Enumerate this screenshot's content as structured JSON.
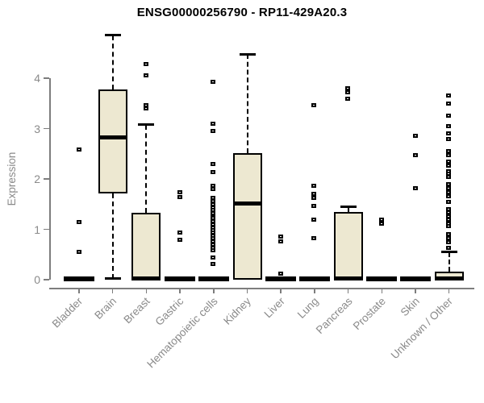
{
  "title": "ENSG00000256790 - RP11-429A20.3",
  "colors": {
    "box_fill": "#ede8d1",
    "box_border": "#000000",
    "axis_color": "#7d7d7d",
    "label_color": "#8a8a8a",
    "title_color": "#000000",
    "background": "#ffffff"
  },
  "chart_data": {
    "type": "boxplot",
    "title": "ENSG00000256790 - RP11-429A20.3",
    "xlabel": "",
    "ylabel": "Expression",
    "ylim": [
      0,
      4.9
    ],
    "yticks": [
      0,
      1,
      2,
      3,
      4
    ],
    "grid": false,
    "legend": false,
    "categories": [
      "Bladder",
      "Brain",
      "Breast",
      "Gastric",
      "Hematopoietic cells",
      "Kidney",
      "Liver",
      "Lung",
      "Pancreas",
      "Prostate",
      "Skin",
      "Unknown / Other"
    ],
    "boxes": [
      {
        "category": "Bladder",
        "whisker_low": null,
        "q1": 0,
        "median": 0.02,
        "q3": 0,
        "whisker_high": null,
        "outliers": [
          2.58,
          1.15,
          0.56
        ]
      },
      {
        "category": "Brain",
        "whisker_low": 0.02,
        "q1": 1.72,
        "median": 2.82,
        "q3": 3.78,
        "whisker_high": 4.85,
        "outliers": []
      },
      {
        "category": "Breast",
        "whisker_low": null,
        "q1": 0,
        "median": 0.02,
        "q3": 1.33,
        "whisker_high": 3.08,
        "outliers": [
          4.28,
          4.06,
          3.46,
          3.4
        ]
      },
      {
        "category": "Gastric",
        "whisker_low": null,
        "q1": 0,
        "median": 0.02,
        "q3": 0,
        "whisker_high": null,
        "outliers": [
          1.74,
          1.64,
          0.94,
          0.8
        ]
      },
      {
        "category": "Hematopoietic cells",
        "whisker_low": null,
        "q1": 0,
        "median": 0.02,
        "q3": 0,
        "whisker_high": null,
        "outliers": [
          3.93,
          3.1,
          2.95,
          2.3,
          2.14,
          1.86,
          1.8,
          1.62,
          1.56,
          1.5,
          1.44,
          1.38,
          1.32,
          1.26,
          1.22,
          1.16,
          1.1,
          1.04,
          0.98,
          0.93,
          0.88,
          0.82,
          0.76,
          0.7,
          0.64,
          0.58,
          0.44,
          0.32
        ]
      },
      {
        "category": "Kidney",
        "whisker_low": null,
        "q1": 0,
        "median": 1.52,
        "q3": 2.52,
        "whisker_high": 4.48,
        "outliers": []
      },
      {
        "category": "Liver",
        "whisker_low": null,
        "q1": 0,
        "median": 0.02,
        "q3": 0,
        "whisker_high": null,
        "outliers": [
          0.86,
          0.76,
          0.12
        ]
      },
      {
        "category": "Lung",
        "whisker_low": null,
        "q1": 0,
        "median": 0.02,
        "q3": 0,
        "whisker_high": null,
        "outliers": [
          3.46,
          1.86,
          1.7,
          1.62,
          1.46,
          1.2,
          0.82
        ]
      },
      {
        "category": "Pancreas",
        "whisker_low": null,
        "q1": 0,
        "median": 0.02,
        "q3": 1.35,
        "whisker_high": 1.45,
        "outliers": [
          3.8,
          3.72,
          3.6
        ]
      },
      {
        "category": "Prostate",
        "whisker_low": null,
        "q1": 0,
        "median": 0.02,
        "q3": 0,
        "whisker_high": null,
        "outliers": [
          1.2,
          1.12
        ]
      },
      {
        "category": "Skin",
        "whisker_low": null,
        "q1": 0,
        "median": 0.02,
        "q3": 0,
        "whisker_high": null,
        "outliers": [
          2.86,
          2.48,
          1.82
        ]
      },
      {
        "category": "Unknown / Other",
        "whisker_low": null,
        "q1": 0,
        "median": 0.03,
        "q3": 0.16,
        "whisker_high": 0.55,
        "outliers": [
          3.65,
          3.5,
          3.25,
          3.05,
          2.9,
          2.8,
          2.56,
          2.48,
          2.35,
          2.27,
          2.16,
          2.1,
          2.04,
          1.9,
          1.82,
          1.74,
          1.66,
          1.55,
          1.4,
          1.33,
          1.26,
          1.19,
          1.12,
          1.06,
          0.91,
          0.83,
          0.74,
          0.64
        ]
      }
    ]
  }
}
